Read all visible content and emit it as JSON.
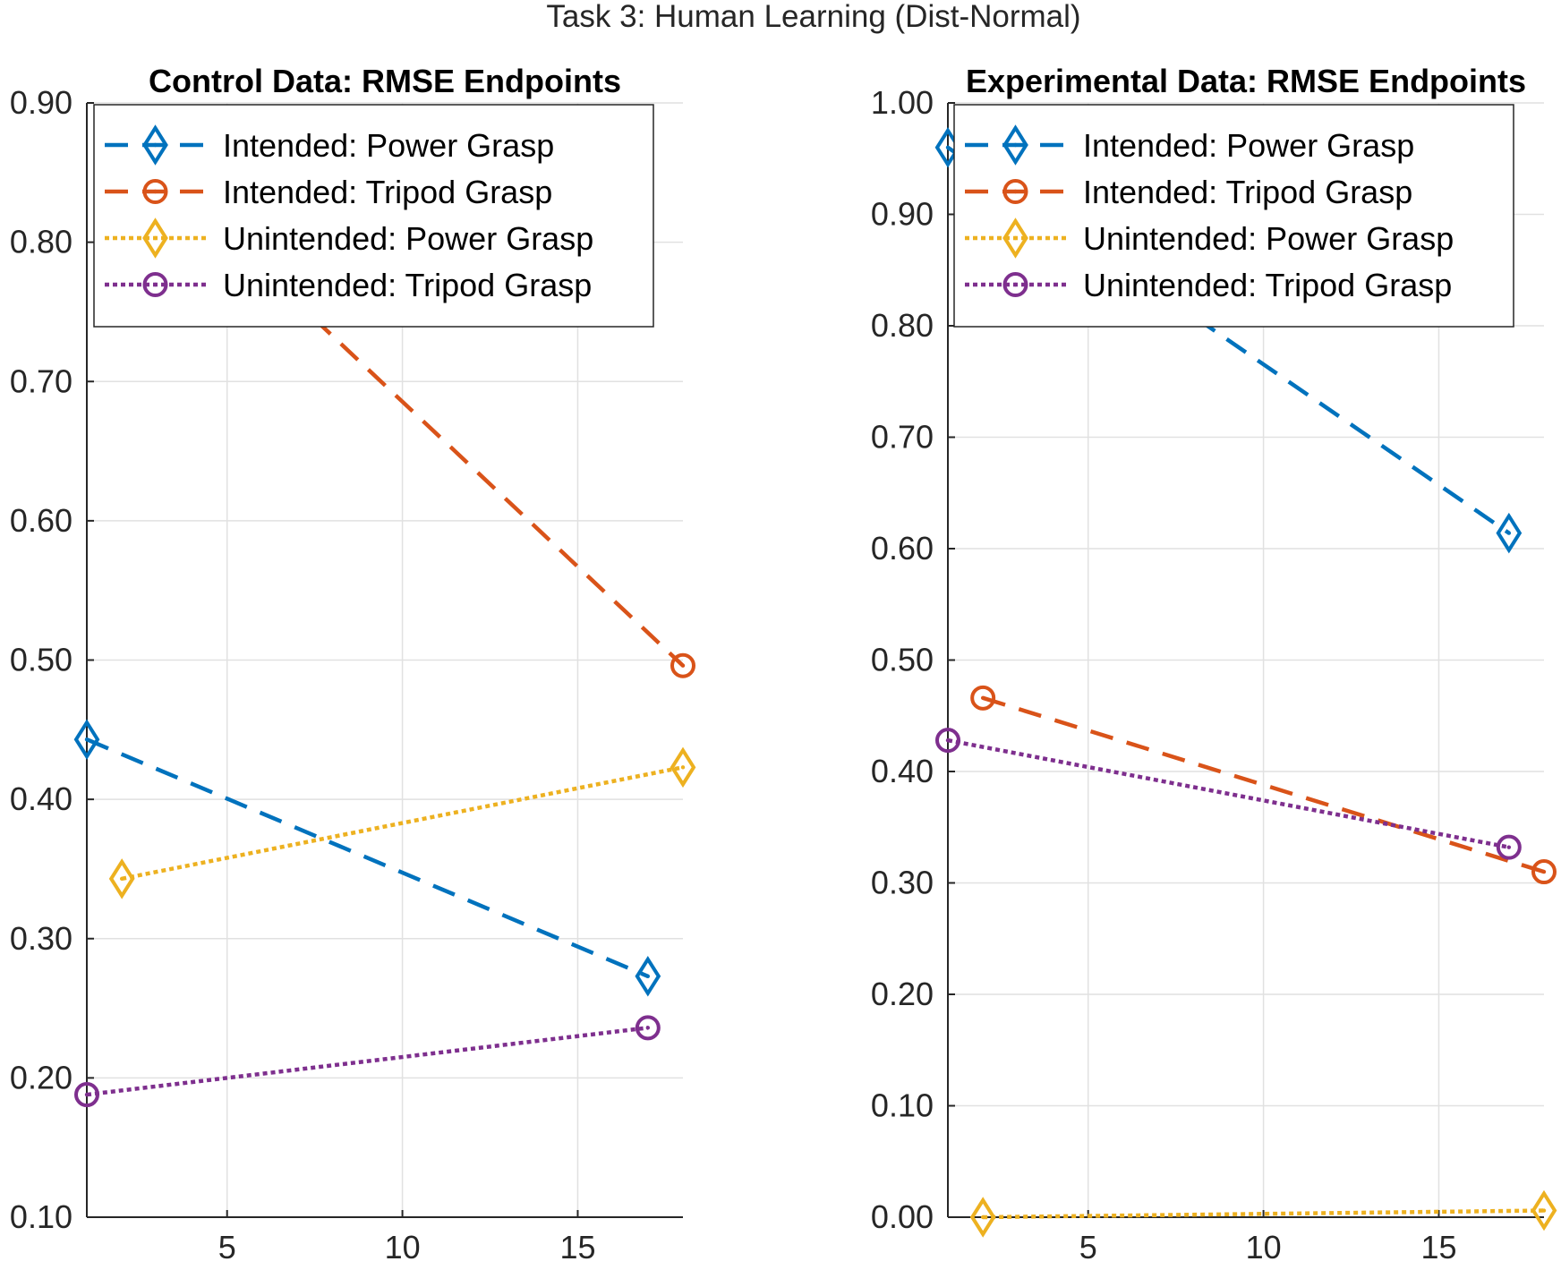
{
  "figure": {
    "title": "Task 3: Human Learning (Dist-Normal)"
  },
  "chart_data": [
    {
      "type": "line",
      "title": "Control Data: RMSE Endpoints",
      "xlabel": "",
      "ylabel": "",
      "xlim": [
        1,
        18
      ],
      "ylim": [
        0.1,
        0.9
      ],
      "xticks": [
        5,
        10,
        15
      ],
      "xtick_labels": [
        "5",
        "10",
        "15"
      ],
      "yticks": [
        0.1,
        0.2,
        0.3,
        0.4,
        0.5,
        0.6,
        0.7,
        0.8,
        0.9
      ],
      "ytick_labels": [
        "0.10",
        "0.20",
        "0.30",
        "0.40",
        "0.50",
        "0.60",
        "0.70",
        "0.80",
        "0.90"
      ],
      "grid": true,
      "legend_position": "top-right",
      "series": [
        {
          "name": "Intended: Power Grasp",
          "color": "#0072BD",
          "line_style": "dashed",
          "marker": "diamond",
          "x": [
            1,
            17
          ],
          "y": [
            0.443,
            0.273
          ]
        },
        {
          "name": "Intended: Tripod Grasp",
          "color": "#D95319",
          "line_style": "dashed",
          "marker": "circle",
          "x": [
            2,
            18
          ],
          "y": [
            0.875,
            0.496
          ]
        },
        {
          "name": "Unintended: Power Grasp",
          "color": "#EDB120",
          "line_style": "dotted",
          "marker": "diamond",
          "x": [
            2,
            18
          ],
          "y": [
            0.343,
            0.423
          ]
        },
        {
          "name": "Unintended: Tripod Grasp",
          "color": "#7E2F8E",
          "line_style": "dotted",
          "marker": "circle",
          "x": [
            1,
            17
          ],
          "y": [
            0.188,
            0.236
          ]
        }
      ]
    },
    {
      "type": "line",
      "title": "Experimental Data: RMSE Endpoints",
      "xlabel": "",
      "ylabel": "",
      "xlim": [
        1,
        18
      ],
      "ylim": [
        0,
        1
      ],
      "xticks": [
        5,
        10,
        15
      ],
      "xtick_labels": [
        "5",
        "10",
        "15"
      ],
      "yticks": [
        0,
        0.1,
        0.2,
        0.3,
        0.4,
        0.5,
        0.6,
        0.7,
        0.8,
        0.9,
        1.0
      ],
      "ytick_labels": [
        "0.00",
        "0.10",
        "0.20",
        "0.30",
        "0.40",
        "0.50",
        "0.60",
        "0.70",
        "0.80",
        "0.90",
        "1.00"
      ],
      "grid": true,
      "legend_position": "top-right",
      "series": [
        {
          "name": "Intended: Power Grasp",
          "color": "#0072BD",
          "line_style": "dashed",
          "marker": "diamond",
          "x": [
            1,
            17
          ],
          "y": [
            0.96,
            0.614
          ]
        },
        {
          "name": "Intended: Tripod Grasp",
          "color": "#D95319",
          "line_style": "dashed",
          "marker": "circle",
          "x": [
            2,
            18
          ],
          "y": [
            0.466,
            0.31
          ]
        },
        {
          "name": "Unintended: Power Grasp",
          "color": "#EDB120",
          "line_style": "dotted",
          "marker": "diamond",
          "x": [
            2,
            18
          ],
          "y": [
            0.0,
            0.006
          ]
        },
        {
          "name": "Unintended: Tripod Grasp",
          "color": "#7E2F8E",
          "line_style": "dotted",
          "marker": "circle",
          "x": [
            1,
            17
          ],
          "y": [
            0.428,
            0.332
          ]
        }
      ]
    }
  ]
}
